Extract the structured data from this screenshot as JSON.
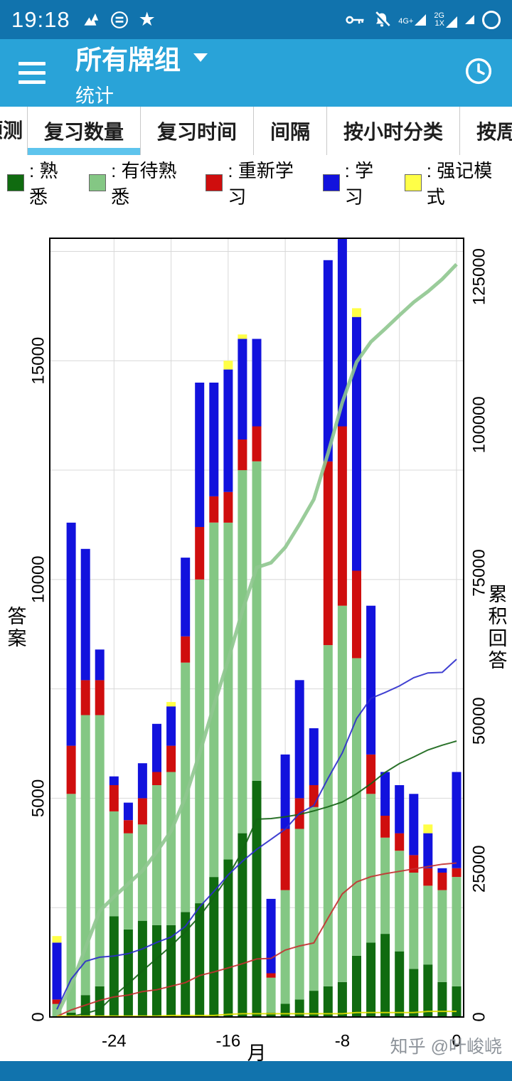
{
  "status_bar": {
    "time": "19:18",
    "left_icons": [
      {
        "name": "bird-app-icon"
      },
      {
        "name": "circle-app-icon"
      },
      {
        "name": "star-icon",
        "glyph": "★"
      }
    ],
    "right_icons": [
      {
        "name": "key-icon"
      },
      {
        "name": "notifications-off-icon"
      },
      {
        "name": "signal-4g-icon",
        "label": "4G+"
      },
      {
        "name": "signal-2g-icon",
        "label": "2G\n1X"
      },
      {
        "name": "signal-extra-icon"
      },
      {
        "name": "data-circle-icon"
      }
    ]
  },
  "app_bar": {
    "title": "所有牌组",
    "subtitle": "统计",
    "menu_icon": "hamburger-icon",
    "action_icon": "clock-icon"
  },
  "tabs": {
    "items": [
      {
        "label": "预测",
        "active": false
      },
      {
        "label": "复习数量",
        "active": true
      },
      {
        "label": "复习时间",
        "active": false
      },
      {
        "label": "间隔",
        "active": false
      },
      {
        "label": "按小时分类",
        "active": false
      },
      {
        "label": "按周分类",
        "active": false
      }
    ],
    "active_underline_color": "#5ec4ed"
  },
  "legend": {
    "items": [
      {
        "label": ": 熟悉",
        "color": "#106b10"
      },
      {
        "label": ": 有待熟悉",
        "color": "#84c784"
      },
      {
        "label": ": 重新学习",
        "color": "#cf0e0e"
      },
      {
        "label": ": 学习",
        "color": "#1212dd"
      },
      {
        "label": ": 强记模式",
        "color": "#ffff47"
      }
    ]
  },
  "watermark": {
    "text": "知乎 @叶峻峣"
  },
  "chart_data": {
    "type": "bar",
    "stacked": true,
    "xlabel": "月",
    "ylabel_left": "答案",
    "ylabel_right": "累积回答",
    "x_months": [
      -28,
      -27,
      -26,
      -25,
      -24,
      -23,
      -22,
      -21,
      -20,
      -19,
      -18,
      -17,
      -16,
      -15,
      -14,
      -13,
      -12,
      -11,
      -10,
      -9,
      -8,
      -7,
      -6,
      -5,
      -4,
      -3,
      -2,
      -1,
      0
    ],
    "x_ticks": [
      -24,
      -16,
      -8,
      0
    ],
    "grid_x_months": [
      -24,
      -20,
      -16,
      -12,
      -8,
      -4,
      0
    ],
    "ylim_left": [
      0,
      17800
    ],
    "left_ticks": [
      0,
      5000,
      10000,
      15000
    ],
    "left_grid_step": 2500,
    "ylim_right": [
      0,
      131500
    ],
    "right_ticks": [
      0,
      25000,
      50000,
      75000,
      100000,
      125000
    ],
    "grid": true,
    "legend_position": "top",
    "lines_note": "cumulative running sum of each series plotted on right axis",
    "series": [
      {
        "name": "熟悉",
        "color": "#106b10",
        "line_color": "#136313",
        "line_width": 2,
        "values": [
          0,
          100,
          500,
          700,
          2300,
          2000,
          2200,
          2100,
          2100,
          2400,
          2600,
          3200,
          3600,
          4200,
          5400,
          100,
          300,
          400,
          600,
          700,
          800,
          1400,
          1700,
          1900,
          1500,
          1100,
          1200,
          800,
          700
        ]
      },
      {
        "name": "有待熟悉",
        "color": "#84c784",
        "line_color": "#8fc68f",
        "line_width": 5,
        "values": [
          300,
          5000,
          6400,
          6200,
          2400,
          2200,
          2200,
          3200,
          3500,
          5700,
          7400,
          8100,
          7700,
          8300,
          7300,
          800,
          2600,
          3900,
          4200,
          7800,
          8600,
          6800,
          3400,
          2200,
          2300,
          2200,
          1800,
          2100,
          2500
        ]
      },
      {
        "name": "重新学习",
        "color": "#cf0e0e",
        "line_color": "#c43030",
        "line_width": 2,
        "values": [
          100,
          1100,
          800,
          800,
          600,
          300,
          600,
          300,
          600,
          600,
          1200,
          600,
          700,
          700,
          800,
          100,
          1400,
          700,
          500,
          4200,
          4100,
          2000,
          900,
          500,
          400,
          400,
          400,
          400,
          200
        ]
      },
      {
        "name": "学习",
        "color": "#1212dd",
        "line_color": "#2b2bcc",
        "line_width": 2,
        "values": [
          1300,
          5100,
          3000,
          700,
          200,
          400,
          800,
          1100,
          900,
          1800,
          3300,
          2600,
          2800,
          2300,
          2000,
          1700,
          1700,
          2700,
          1300,
          4600,
          4300,
          5800,
          3400,
          1000,
          1100,
          1400,
          800,
          100,
          2200
        ]
      },
      {
        "name": "强记模式",
        "color": "#ffff47",
        "line_color": "#e0e000",
        "line_width": 2,
        "values": [
          150,
          0,
          0,
          0,
          0,
          0,
          0,
          0,
          100,
          0,
          0,
          0,
          200,
          100,
          0,
          0,
          0,
          0,
          0,
          0,
          0,
          200,
          0,
          0,
          0,
          0,
          200,
          0,
          0
        ]
      }
    ]
  }
}
